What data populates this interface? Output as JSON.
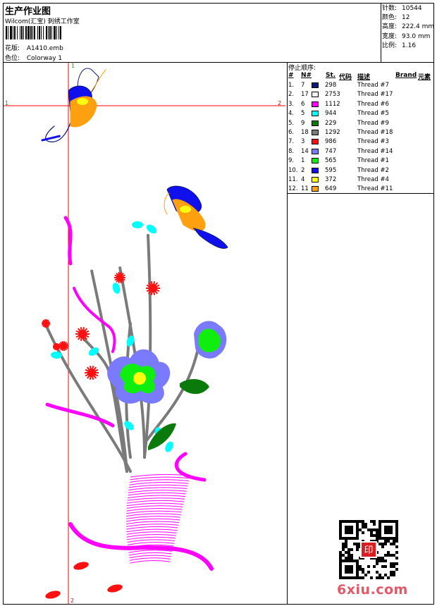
{
  "header": {
    "title": "生产作业图",
    "subtitle": "Wilcom(汇宝) 刺绣工作室",
    "design_label": "花版:",
    "design_value": "A1410.emb",
    "colorway_label": "色位:",
    "colorway_value": "Colorway 1"
  },
  "stats": [
    {
      "label": "针数:",
      "value": "10544"
    },
    {
      "label": "颜色:",
      "value": "12"
    },
    {
      "label": "高度:",
      "value": "222.4 mm"
    },
    {
      "label": "宽度:",
      "value": "93.0 mm"
    },
    {
      "label": "比例:",
      "value": "1.16"
    }
  ],
  "stop_sequence": {
    "title": "停止顺序:",
    "headers": {
      "index": "#",
      "number": "N#",
      "stitches": "St.",
      "code": "代码",
      "description": "描述",
      "brand": "Brand",
      "element": "元素"
    },
    "rows": [
      {
        "index": "1.",
        "number": "7",
        "color": "#0a1a7a",
        "stitches": "298",
        "description": "Thread #7"
      },
      {
        "index": "2.",
        "number": "17",
        "color": "#f4f4f4",
        "stitches": "2753",
        "description": "Thread #17"
      },
      {
        "index": "3.",
        "number": "6",
        "color": "#ff00ff",
        "stitches": "1112",
        "description": "Thread #6"
      },
      {
        "index": "4.",
        "number": "5",
        "color": "#00ffff",
        "stitches": "944",
        "description": "Thread #5"
      },
      {
        "index": "5.",
        "number": "9",
        "color": "#0a7a0a",
        "stitches": "229",
        "description": "Thread #9"
      },
      {
        "index": "6.",
        "number": "18",
        "color": "#7a7a7a",
        "stitches": "1292",
        "description": "Thread #18"
      },
      {
        "index": "7.",
        "number": "3",
        "color": "#ff1010",
        "stitches": "986",
        "description": "Thread #3"
      },
      {
        "index": "8.",
        "number": "14",
        "color": "#7a7aff",
        "stitches": "747",
        "description": "Thread #14"
      },
      {
        "index": "9.",
        "number": "1",
        "color": "#10ee10",
        "stitches": "565",
        "description": "Thread #1"
      },
      {
        "index": "10.",
        "number": "2",
        "color": "#1010ee",
        "stitches": "595",
        "description": "Thread #2"
      },
      {
        "index": "11.",
        "number": "4",
        "color": "#ffff10",
        "stitches": "372",
        "description": "Thread #4"
      },
      {
        "index": "12.",
        "number": "11",
        "color": "#ffa010",
        "stitches": "649",
        "description": "Thread #11"
      }
    ]
  },
  "guides": {
    "top_left": "1",
    "top_right": "2",
    "bottom": "2",
    "left_mark": "1"
  },
  "seal_text": "印",
  "watermark": "6xiu.com"
}
